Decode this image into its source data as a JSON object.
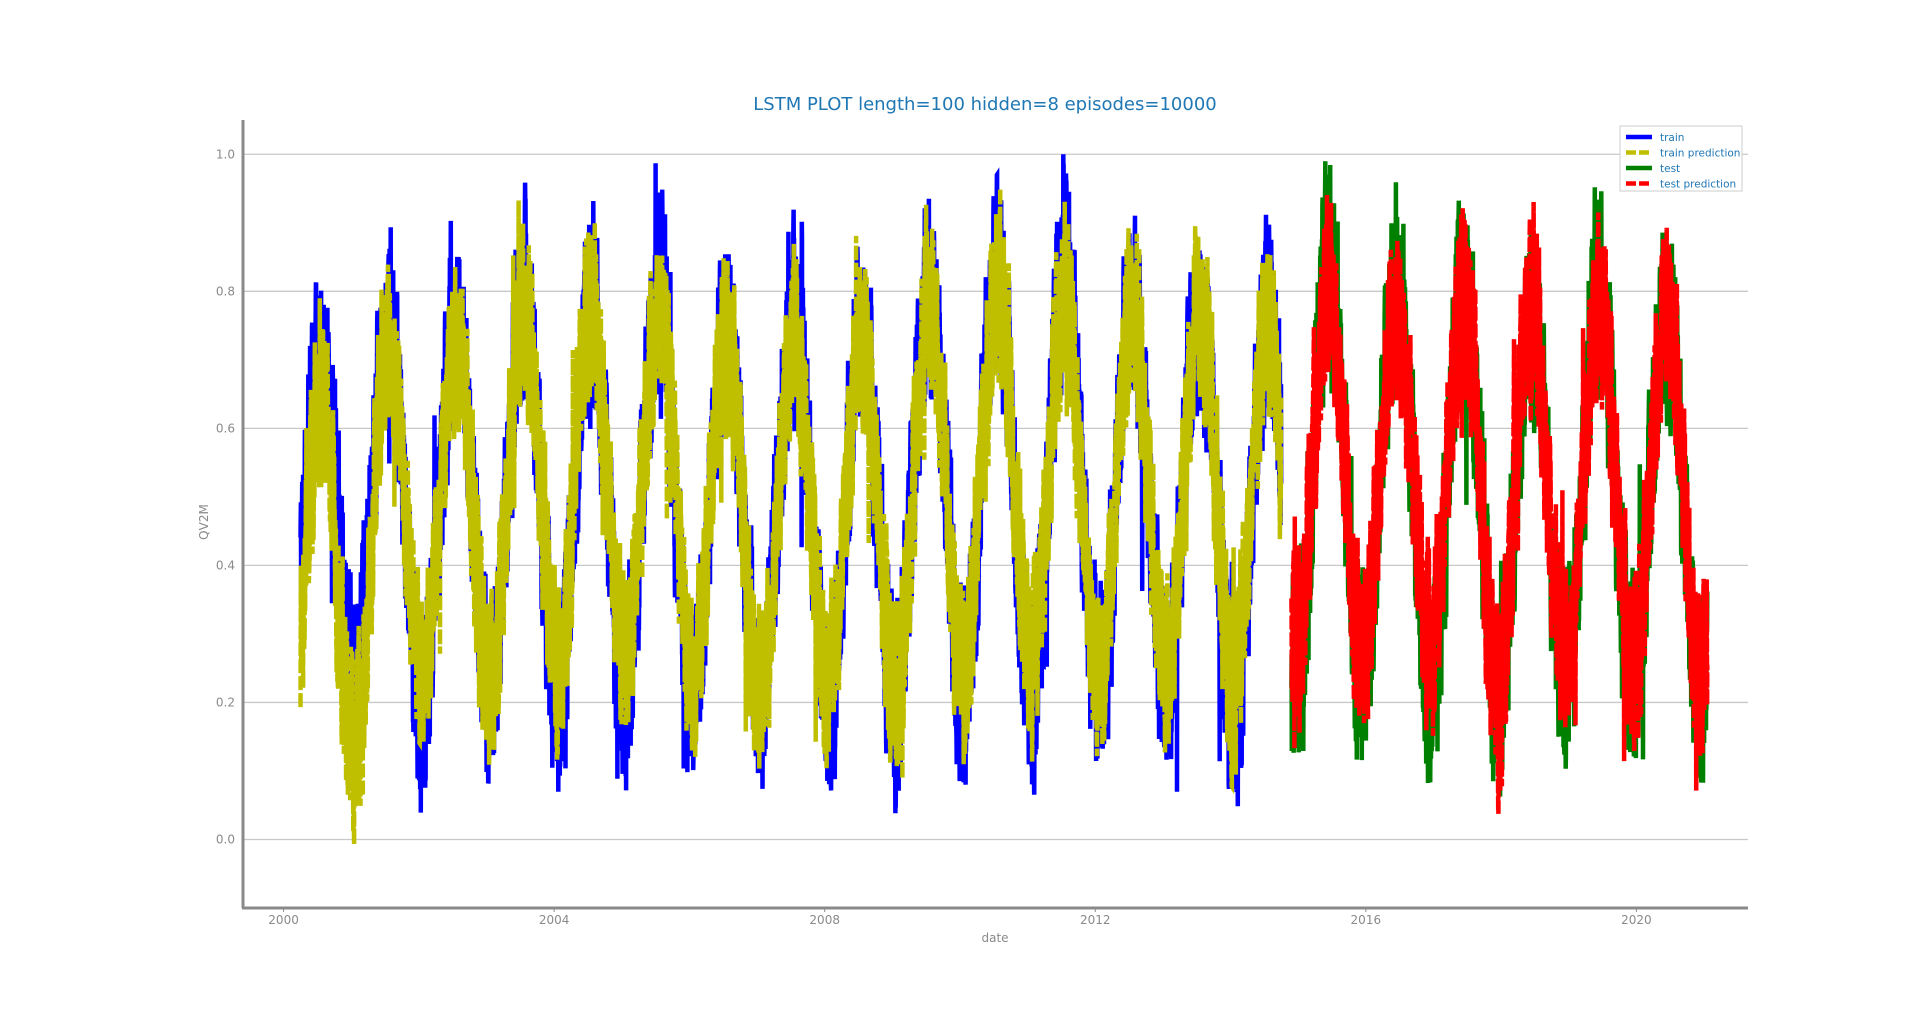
{
  "chart_data": {
    "type": "line",
    "title": "LSTM PLOT length=100 hidden=8 episodes=10000",
    "xlabel": "date",
    "ylabel": "QV2M",
    "xlim": [
      1999.4,
      2021.65
    ],
    "ylim": [
      -0.1,
      1.05
    ],
    "x_ticks": [
      {
        "value": 2000,
        "label": "2000"
      },
      {
        "value": 2004,
        "label": "2004"
      },
      {
        "value": 2008,
        "label": "2008"
      },
      {
        "value": 2012,
        "label": "2012"
      },
      {
        "value": 2016,
        "label": "2016"
      },
      {
        "value": 2020,
        "label": "2020"
      }
    ],
    "y_ticks": [
      {
        "value": 0.0,
        "label": "0.0"
      },
      {
        "value": 0.2,
        "label": "0.2"
      },
      {
        "value": 0.4,
        "label": "0.4"
      },
      {
        "value": 0.6,
        "label": "0.6"
      },
      {
        "value": 0.8,
        "label": "0.8"
      },
      {
        "value": 1.0,
        "label": "1.0"
      }
    ],
    "grid": "horizontal",
    "legend_position": "top-right",
    "series": [
      {
        "name": "train",
        "color": "#0000ff",
        "x_range": [
          2000.25,
          2014.75
        ],
        "peaks": [
          [
            2000.55,
            0.86
          ],
          [
            2001.55,
            0.92
          ],
          [
            2002.55,
            0.9
          ],
          [
            2003.55,
            0.97
          ],
          [
            2004.55,
            0.92
          ],
          [
            2005.55,
            0.98
          ],
          [
            2006.55,
            0.9
          ],
          [
            2007.55,
            0.92
          ],
          [
            2008.55,
            0.92
          ],
          [
            2009.55,
            0.99
          ],
          [
            2010.55,
            1.0
          ],
          [
            2011.55,
            1.0
          ],
          [
            2012.55,
            0.93
          ],
          [
            2013.55,
            0.96
          ],
          [
            2014.55,
            0.93
          ]
        ],
        "troughs": [
          [
            2000.95,
            0.08
          ],
          [
            2001.95,
            0.05
          ],
          [
            2002.95,
            0.04
          ],
          [
            2003.95,
            0.05
          ],
          [
            2004.95,
            0.05
          ],
          [
            2005.95,
            0.04
          ],
          [
            2006.95,
            0.05
          ],
          [
            2007.95,
            0.03
          ],
          [
            2008.95,
            0.02
          ],
          [
            2009.95,
            0.04
          ],
          [
            2010.95,
            0.05
          ],
          [
            2011.95,
            0.04
          ],
          [
            2012.95,
            0.06
          ],
          [
            2013.95,
            0.0
          ]
        ]
      },
      {
        "name": "train prediction",
        "color": "#bfbf00",
        "x_range": [
          2000.25,
          2014.75
        ],
        "peaks": [
          [
            2000.55,
            0.78
          ],
          [
            2001.55,
            0.88
          ],
          [
            2002.55,
            0.88
          ],
          [
            2003.55,
            0.93
          ],
          [
            2004.55,
            0.94
          ],
          [
            2005.55,
            0.92
          ],
          [
            2006.55,
            0.87
          ],
          [
            2007.55,
            0.88
          ],
          [
            2008.55,
            0.87
          ],
          [
            2009.55,
            0.95
          ],
          [
            2010.55,
            0.97
          ],
          [
            2011.55,
            0.93
          ],
          [
            2012.55,
            0.91
          ],
          [
            2013.55,
            0.94
          ],
          [
            2014.55,
            0.9
          ]
        ],
        "troughs": [
          [
            2000.95,
            -0.05
          ],
          [
            2001.95,
            0.1
          ],
          [
            2002.95,
            0.06
          ],
          [
            2003.95,
            0.1
          ],
          [
            2004.95,
            0.1
          ],
          [
            2005.95,
            0.1
          ],
          [
            2006.95,
            0.06
          ],
          [
            2007.95,
            0.08
          ],
          [
            2008.95,
            0.06
          ],
          [
            2009.95,
            0.08
          ],
          [
            2010.95,
            0.09
          ],
          [
            2011.95,
            0.08
          ],
          [
            2012.95,
            0.1
          ],
          [
            2013.95,
            0.06
          ]
        ]
      },
      {
        "name": "test",
        "color": "#008000",
        "x_range": [
          2014.9,
          2021.05
        ],
        "peaks": [
          [
            2015.45,
            1.0
          ],
          [
            2016.45,
            0.98
          ],
          [
            2017.45,
            0.98
          ],
          [
            2018.45,
            0.93
          ],
          [
            2019.45,
            0.95
          ],
          [
            2020.45,
            0.94
          ]
        ],
        "troughs": [
          [
            2014.95,
            0.03
          ],
          [
            2015.95,
            0.08
          ],
          [
            2016.95,
            0.05
          ],
          [
            2017.95,
            0.02
          ],
          [
            2018.95,
            0.08
          ],
          [
            2019.95,
            0.07
          ],
          [
            2020.95,
            0.05
          ]
        ]
      },
      {
        "name": "test prediction",
        "color": "#ff0000",
        "x_range": [
          2014.9,
          2021.05
        ],
        "peaks": [
          [
            2015.45,
            0.96
          ],
          [
            2016.45,
            0.92
          ],
          [
            2017.45,
            0.95
          ],
          [
            2018.45,
            0.92
          ],
          [
            2019.45,
            0.93
          ],
          [
            2020.45,
            0.93
          ]
        ],
        "troughs": [
          [
            2014.95,
            0.09
          ],
          [
            2015.95,
            0.12
          ],
          [
            2016.95,
            0.14
          ],
          [
            2017.95,
            0.04
          ],
          [
            2018.95,
            0.12
          ],
          [
            2019.95,
            0.1
          ],
          [
            2020.95,
            0.08
          ]
        ]
      }
    ]
  }
}
